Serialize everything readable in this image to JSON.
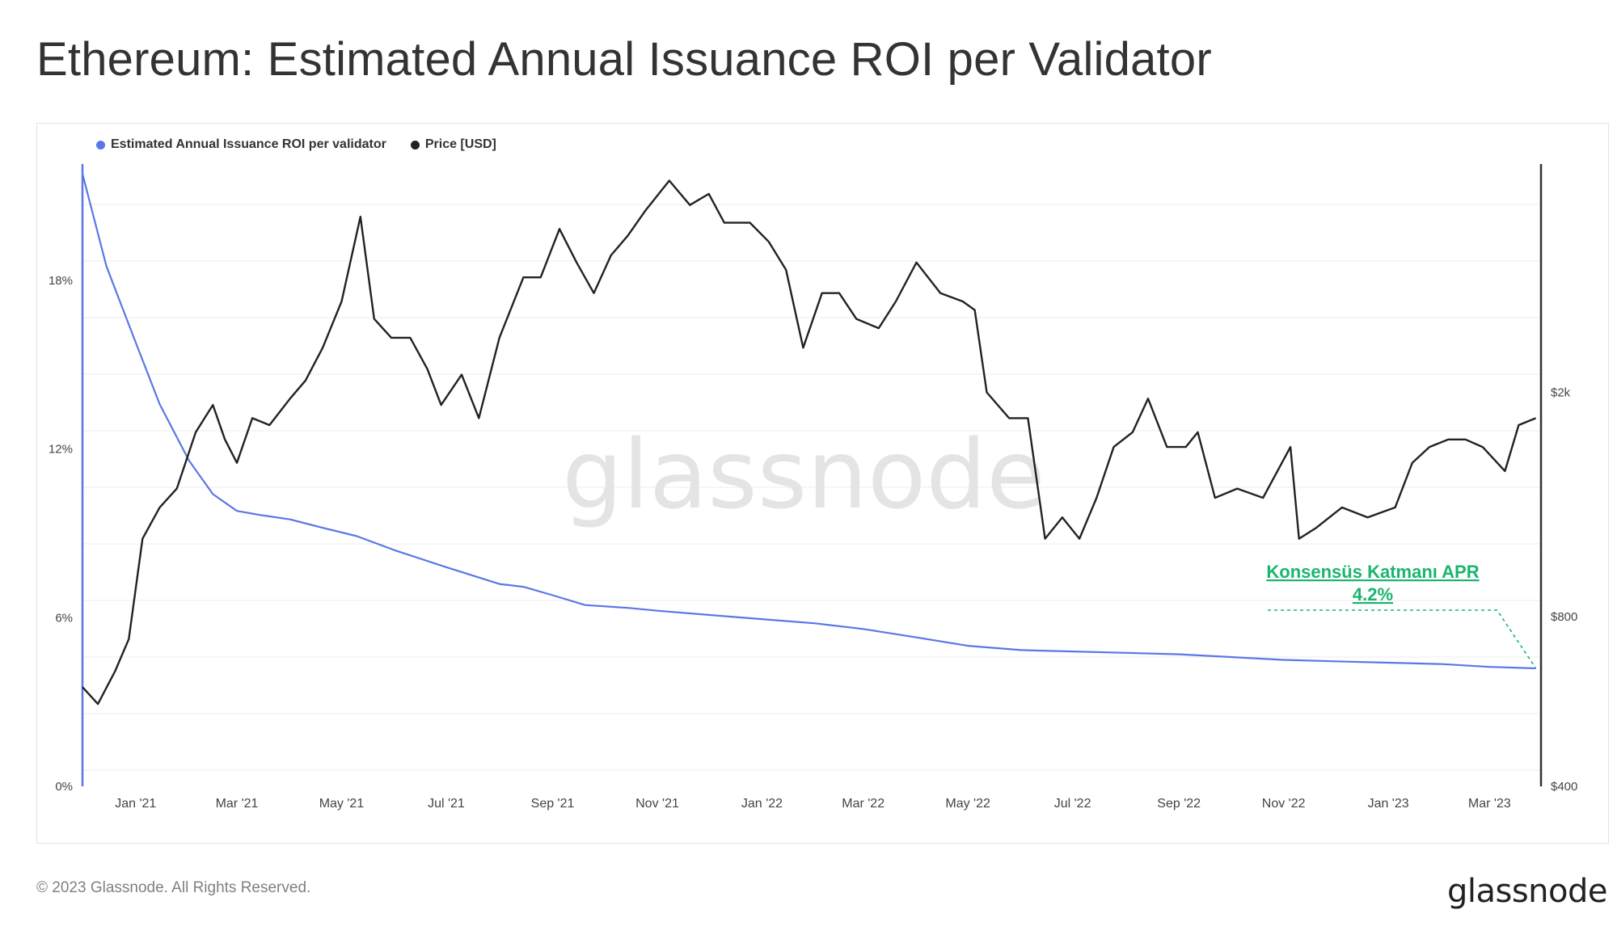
{
  "page": {
    "title": "Ethereum: Estimated Annual Issuance ROI per Validator",
    "footer_copyright": "© 2023 Glassnode. All Rights Reserved.",
    "footer_logo": "glassnode",
    "watermark": "glassnode"
  },
  "chart_data": {
    "type": "line",
    "title": "Ethereum: Estimated Annual Issuance ROI per Validator",
    "legend_position": "top-left",
    "grid": true,
    "x_tick_labels": [
      "Jan '21",
      "Mar '21",
      "May '21",
      "Jul '21",
      "Sep '21",
      "Nov '21",
      "Jan '22",
      "Mar '22",
      "May '22",
      "Jul '22",
      "Sep '22",
      "Nov '22",
      "Jan '23",
      "Mar '23"
    ],
    "x_tick_dates": [
      "2021-01-01",
      "2021-03-01",
      "2021-05-01",
      "2021-07-01",
      "2021-09-01",
      "2021-11-01",
      "2022-01-01",
      "2022-03-01",
      "2022-05-01",
      "2022-07-01",
      "2022-09-01",
      "2022-11-01",
      "2023-01-01",
      "2023-03-01"
    ],
    "x_range": [
      "2020-12-01",
      "2023-03-31"
    ],
    "y_left": {
      "tick_labels": [
        "0%",
        "6%",
        "12%",
        "18%"
      ],
      "ticks": [
        0,
        6,
        12,
        18
      ],
      "range": [
        0,
        22
      ],
      "unit": "%"
    },
    "y_right": {
      "tick_labels": [
        "$400",
        "$800",
        "$2k"
      ],
      "ticks": [
        400,
        800,
        2000
      ],
      "range": [
        400,
        5000
      ],
      "scale": "log"
    },
    "series": [
      {
        "name": "Estimated Annual Issuance ROI per validator",
        "axis": "left",
        "color": "#5b77e5",
        "points": [
          [
            "2020-12-01",
            21.8
          ],
          [
            "2020-12-15",
            18.5
          ],
          [
            "2021-01-01",
            15.8
          ],
          [
            "2021-01-15",
            13.6
          ],
          [
            "2021-02-01",
            11.6
          ],
          [
            "2021-02-15",
            10.4
          ],
          [
            "2021-03-01",
            9.8
          ],
          [
            "2021-03-15",
            9.65
          ],
          [
            "2021-04-01",
            9.5
          ],
          [
            "2021-04-20",
            9.2
          ],
          [
            "2021-05-10",
            8.9
          ],
          [
            "2021-06-01",
            8.4
          ],
          [
            "2021-07-01",
            7.8
          ],
          [
            "2021-08-01",
            7.2
          ],
          [
            "2021-08-15",
            7.1
          ],
          [
            "2021-09-01",
            6.8
          ],
          [
            "2021-09-20",
            6.45
          ],
          [
            "2021-10-15",
            6.35
          ],
          [
            "2021-11-01",
            6.25
          ],
          [
            "2021-12-01",
            6.1
          ],
          [
            "2022-01-01",
            5.95
          ],
          [
            "2022-02-01",
            5.8
          ],
          [
            "2022-03-01",
            5.6
          ],
          [
            "2022-04-01",
            5.3
          ],
          [
            "2022-05-01",
            5.0
          ],
          [
            "2022-06-01",
            4.85
          ],
          [
            "2022-07-01",
            4.8
          ],
          [
            "2022-08-01",
            4.75
          ],
          [
            "2022-09-01",
            4.7
          ],
          [
            "2022-10-01",
            4.6
          ],
          [
            "2022-11-01",
            4.5
          ],
          [
            "2022-12-01",
            4.45
          ],
          [
            "2023-01-01",
            4.4
          ],
          [
            "2023-02-01",
            4.35
          ],
          [
            "2023-03-01",
            4.25
          ],
          [
            "2023-03-28",
            4.2
          ]
        ]
      },
      {
        "name": "Price [USD]",
        "axis": "right",
        "color": "#222222",
        "points": [
          [
            "2020-12-01",
            600
          ],
          [
            "2020-12-10",
            560
          ],
          [
            "2020-12-20",
            640
          ],
          [
            "2020-12-28",
            730
          ],
          [
            "2021-01-05",
            1100
          ],
          [
            "2021-01-15",
            1250
          ],
          [
            "2021-01-25",
            1350
          ],
          [
            "2021-02-05",
            1700
          ],
          [
            "2021-02-15",
            1900
          ],
          [
            "2021-02-22",
            1650
          ],
          [
            "2021-03-01",
            1500
          ],
          [
            "2021-03-10",
            1800
          ],
          [
            "2021-03-20",
            1750
          ],
          [
            "2021-04-01",
            1950
          ],
          [
            "2021-04-10",
            2100
          ],
          [
            "2021-04-20",
            2400
          ],
          [
            "2021-05-01",
            2900
          ],
          [
            "2021-05-12",
            4100
          ],
          [
            "2021-05-20",
            2700
          ],
          [
            "2021-05-30",
            2500
          ],
          [
            "2021-06-10",
            2500
          ],
          [
            "2021-06-20",
            2200
          ],
          [
            "2021-06-28",
            1900
          ],
          [
            "2021-07-10",
            2150
          ],
          [
            "2021-07-20",
            1800
          ],
          [
            "2021-08-01",
            2500
          ],
          [
            "2021-08-15",
            3200
          ],
          [
            "2021-08-25",
            3200
          ],
          [
            "2021-09-05",
            3900
          ],
          [
            "2021-09-15",
            3400
          ],
          [
            "2021-09-25",
            3000
          ],
          [
            "2021-10-05",
            3500
          ],
          [
            "2021-10-15",
            3800
          ],
          [
            "2021-10-25",
            4200
          ],
          [
            "2021-11-08",
            4750
          ],
          [
            "2021-11-20",
            4300
          ],
          [
            "2021-12-01",
            4500
          ],
          [
            "2021-12-10",
            4000
          ],
          [
            "2021-12-25",
            4000
          ],
          [
            "2022-01-05",
            3700
          ],
          [
            "2022-01-15",
            3300
          ],
          [
            "2022-01-25",
            2400
          ],
          [
            "2022-02-05",
            3000
          ],
          [
            "2022-02-15",
            3000
          ],
          [
            "2022-02-25",
            2700
          ],
          [
            "2022-03-10",
            2600
          ],
          [
            "2022-03-20",
            2900
          ],
          [
            "2022-04-01",
            3400
          ],
          [
            "2022-04-15",
            3000
          ],
          [
            "2022-04-28",
            2900
          ],
          [
            "2022-05-05",
            2800
          ],
          [
            "2022-05-12",
            2000
          ],
          [
            "2022-05-25",
            1800
          ],
          [
            "2022-06-05",
            1800
          ],
          [
            "2022-06-15",
            1100
          ],
          [
            "2022-06-25",
            1200
          ],
          [
            "2022-07-05",
            1100
          ],
          [
            "2022-07-15",
            1300
          ],
          [
            "2022-07-25",
            1600
          ],
          [
            "2022-08-05",
            1700
          ],
          [
            "2022-08-14",
            1950
          ],
          [
            "2022-08-25",
            1600
          ],
          [
            "2022-09-05",
            1600
          ],
          [
            "2022-09-12",
            1700
          ],
          [
            "2022-09-22",
            1300
          ],
          [
            "2022-10-05",
            1350
          ],
          [
            "2022-10-20",
            1300
          ],
          [
            "2022-11-05",
            1600
          ],
          [
            "2022-11-10",
            1100
          ],
          [
            "2022-11-20",
            1150
          ],
          [
            "2022-12-05",
            1250
          ],
          [
            "2022-12-20",
            1200
          ],
          [
            "2023-01-05",
            1250
          ],
          [
            "2023-01-15",
            1500
          ],
          [
            "2023-01-25",
            1600
          ],
          [
            "2023-02-05",
            1650
          ],
          [
            "2023-02-15",
            1650
          ],
          [
            "2023-02-25",
            1600
          ],
          [
            "2023-03-10",
            1450
          ],
          [
            "2023-03-18",
            1750
          ],
          [
            "2023-03-28",
            1800
          ]
        ]
      }
    ],
    "annotations": [
      {
        "text": "Konsensüs Katmanı APR",
        "value": "4.2%",
        "color": "#1bb56e"
      }
    ]
  },
  "colors": {
    "roi_line": "#5b77e5",
    "price_line": "#222222",
    "annotation": "#1bb56e",
    "grid": "#eeeeee",
    "watermark": "#e4e4e4"
  }
}
